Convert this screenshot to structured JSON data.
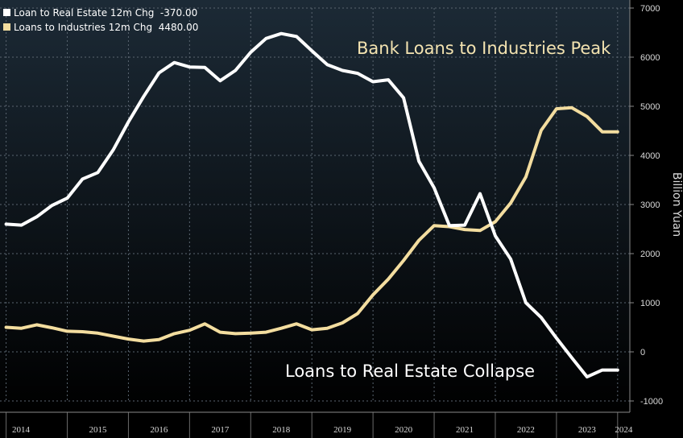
{
  "chart_data": {
    "type": "line",
    "ylabel": "Billion Yuan",
    "ylim": [
      -1000,
      7000
    ],
    "yticks": [
      7000,
      6000,
      5000,
      4000,
      3000,
      2000,
      1000,
      0,
      -1000
    ],
    "x_tick_labels": [
      "2014",
      "2015",
      "2016",
      "2017",
      "2018",
      "2019",
      "2020",
      "2021",
      "2022",
      "2023",
      "2024"
    ],
    "grid": true,
    "legend_placement": "top-left",
    "annotations": [
      {
        "text": "Bank Loans to Industries Peak",
        "series": "Loans to Industries 12m Chg"
      },
      {
        "text": "Loans to Real Estate Collapse",
        "series": "Loan to Real Estate 12m Chg"
      }
    ],
    "x": [
      2014.0,
      2014.25,
      2014.5,
      2014.75,
      2015.0,
      2015.25,
      2015.5,
      2015.75,
      2016.0,
      2016.25,
      2016.5,
      2016.75,
      2017.0,
      2017.25,
      2017.5,
      2017.75,
      2018.0,
      2018.25,
      2018.5,
      2018.75,
      2019.0,
      2019.25,
      2019.5,
      2019.75,
      2020.0,
      2020.25,
      2020.5,
      2020.75,
      2021.0,
      2021.25,
      2021.5,
      2021.75,
      2022.0,
      2022.25,
      2022.5,
      2022.75,
      2023.0,
      2023.25,
      2023.5,
      2023.75,
      2024.0
    ],
    "series": [
      {
        "name": "Loan to Real Estate 12m Chg",
        "legend_value": "-370.00",
        "color": "#ffffff",
        "values": [
          2600,
          2580,
          2750,
          2980,
          3130,
          3520,
          3650,
          4110,
          4680,
          5200,
          5680,
          5890,
          5800,
          5790,
          5520,
          5730,
          6100,
          6380,
          6480,
          6420,
          6130,
          5850,
          5730,
          5670,
          5500,
          5540,
          5170,
          3880,
          3340,
          2570,
          2580,
          3220,
          2360,
          1890,
          1000,
          700,
          280,
          -120,
          -510,
          -370,
          -370
        ]
      },
      {
        "name": "Loans to Industries 12m Chg",
        "legend_value": "4480.00",
        "color": "#f3dd9f",
        "values": [
          500,
          480,
          550,
          490,
          420,
          410,
          380,
          320,
          260,
          220,
          250,
          370,
          440,
          570,
          400,
          370,
          380,
          400,
          480,
          570,
          450,
          480,
          590,
          780,
          1160,
          1480,
          1860,
          2270,
          2570,
          2550,
          2490,
          2470,
          2650,
          3030,
          3560,
          4510,
          4950,
          4970,
          4790,
          4480,
          4480
        ]
      }
    ]
  },
  "legend": {
    "items": [
      {
        "label": "Loan to Real Estate 12m Chg  -370.00",
        "color": "#ffffff"
      },
      {
        "label": "Loans to Industries 12m Chg  4480.00",
        "color": "#f3dd9f"
      }
    ]
  },
  "colors": {
    "background_top": "#1c2a36",
    "background_bottom": "#000000",
    "grid": "#5a6570"
  }
}
